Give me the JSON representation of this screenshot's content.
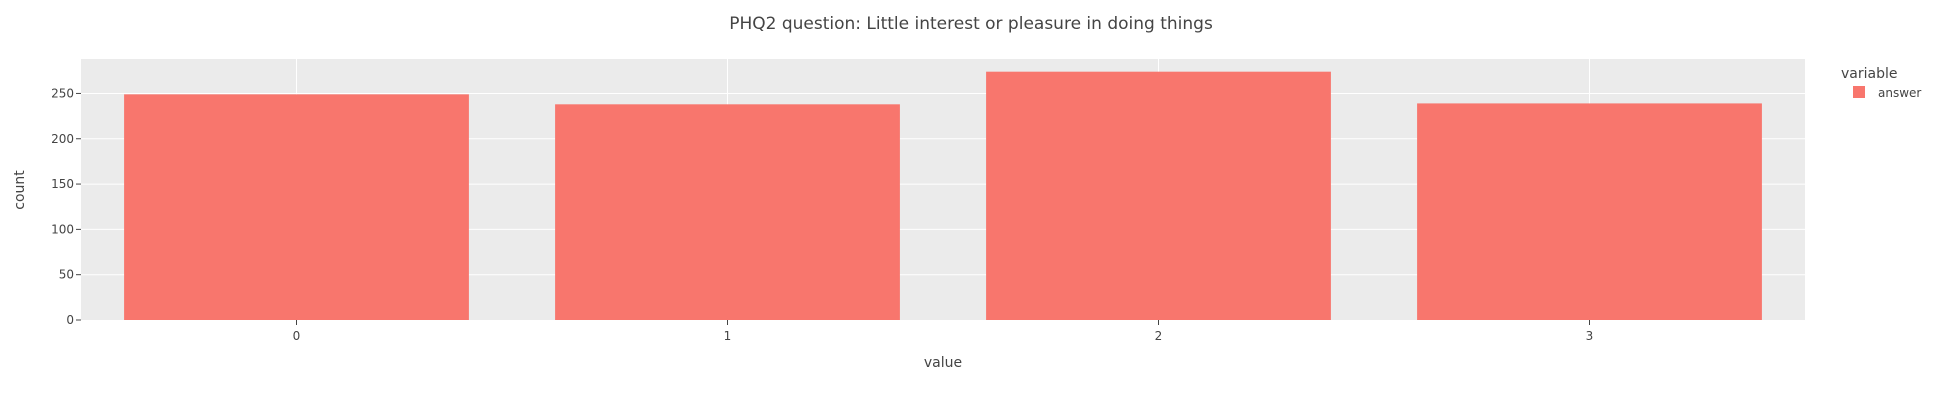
{
  "chart_data": {
    "type": "bar",
    "title": "PHQ2 question: Little interest or pleasure in doing things",
    "xlabel": "value",
    "ylabel": "count",
    "categories": [
      "0",
      "1",
      "2",
      "3"
    ],
    "series": [
      {
        "name": "answer",
        "values": [
          249,
          238,
          274,
          239
        ],
        "color": "#F8766D"
      }
    ],
    "y_ticks": [
      0,
      50,
      100,
      150,
      200,
      250
    ],
    "ylim": [
      0,
      288
    ],
    "legend": {
      "title": "variable",
      "placement": "right"
    },
    "grid": true,
    "colors": {
      "plot_background": "#EBEBEB",
      "grid": "#FFFFFF",
      "bar": "#F8766D"
    }
  }
}
